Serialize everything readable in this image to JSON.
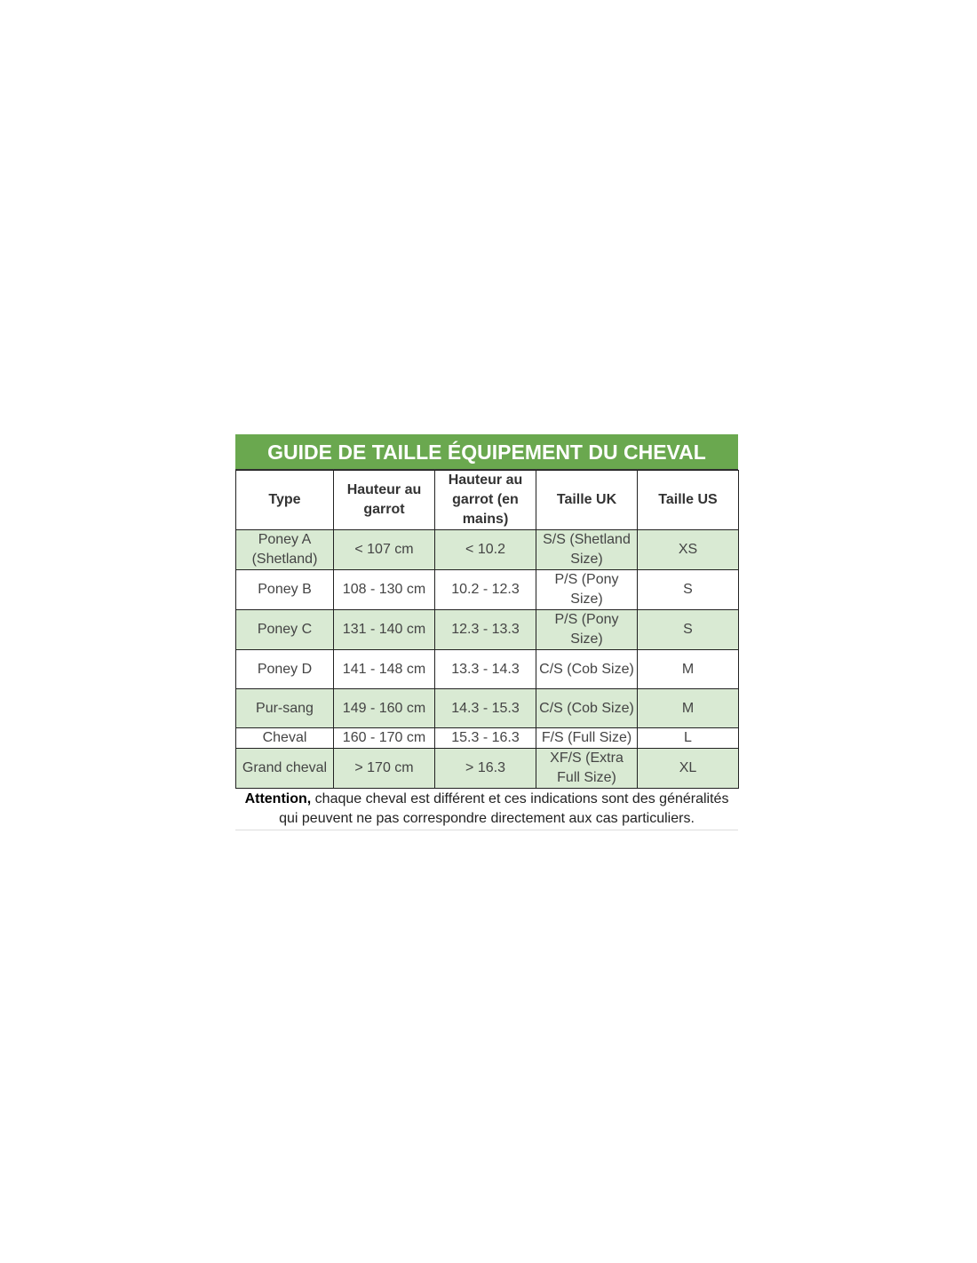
{
  "title": "GUIDE DE TAILLE ÉQUIPEMENT DU CHEVAL",
  "colors": {
    "title_bg": "#6aa84f",
    "stripe_bg": "#d9ead3"
  },
  "headers": [
    "Type",
    "Hauteur au garrot",
    "Hauteur au garrot (en mains)",
    "Taille UK",
    "Taille US"
  ],
  "rows": [
    [
      "Poney A (Shetland)",
      "< 107 cm",
      "< 10.2",
      "S/S (Shetland Size)",
      "XS"
    ],
    [
      "Poney B",
      "108 - 130 cm",
      "10.2 - 12.3",
      "P/S (Pony Size)",
      "S"
    ],
    [
      "Poney C",
      "131 - 140 cm",
      "12.3 - 13.3",
      "P/S (Pony Size)",
      "S"
    ],
    [
      "Poney D",
      "141 - 148 cm",
      "13.3 - 14.3",
      "C/S (Cob Size)",
      "M"
    ],
    [
      "Pur-sang",
      "149 - 160 cm",
      "14.3 - 15.3",
      "C/S (Cob Size)",
      "M"
    ],
    [
      "Cheval",
      "160 - 170 cm",
      "15.3 - 16.3",
      "F/S (Full Size)",
      "L"
    ],
    [
      "Grand cheval",
      "> 170 cm",
      "> 16.3",
      "XF/S (Extra Full Size)",
      "XL"
    ]
  ],
  "note": {
    "bold": "Attention,",
    "text": " chaque cheval est différent et ces indications sont des généralités qui peuvent ne pas correspondre directement aux cas particuliers."
  }
}
